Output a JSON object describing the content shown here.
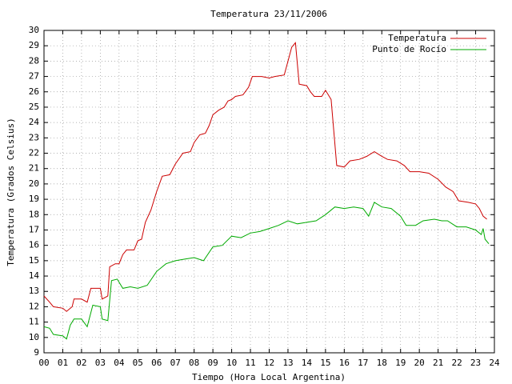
{
  "chart_data": {
    "type": "line",
    "title": "Temperatura 23/11/2006",
    "x_label": "Tiempo (Hora Local Argentina)",
    "y_label": "Temperatura (Grados Celsius)",
    "xlim": [
      0,
      24
    ],
    "ylim": [
      9,
      30
    ],
    "xticks": [
      {
        "value": 0,
        "label": "00"
      },
      {
        "value": 1,
        "label": "01"
      },
      {
        "value": 2,
        "label": "02"
      },
      {
        "value": 3,
        "label": "03"
      },
      {
        "value": 4,
        "label": "04"
      },
      {
        "value": 5,
        "label": "05"
      },
      {
        "value": 6,
        "label": "06"
      },
      {
        "value": 7,
        "label": "07"
      },
      {
        "value": 8,
        "label": "08"
      },
      {
        "value": 9,
        "label": "09"
      },
      10,
      11,
      12,
      13,
      14,
      15,
      16,
      17,
      18,
      19,
      20,
      21,
      22,
      23,
      24
    ],
    "yticks": [
      9,
      10,
      11,
      12,
      13,
      14,
      15,
      16,
      17,
      18,
      19,
      20,
      21,
      22,
      23,
      24,
      25,
      26,
      27,
      28,
      29,
      30
    ],
    "grid": true,
    "legend": "top-right",
    "series": [
      {
        "name": "Temperatura",
        "color": "#cc0000",
        "x": [
          0.0,
          0.3,
          0.5,
          1.0,
          1.2,
          1.5,
          1.6,
          2.0,
          2.3,
          2.5,
          3.0,
          3.1,
          3.4,
          3.5,
          3.8,
          4.0,
          4.2,
          4.4,
          4.8,
          5.0,
          5.2,
          5.4,
          5.7,
          6.0,
          6.3,
          6.7,
          7.0,
          7.4,
          7.8,
          8.0,
          8.3,
          8.6,
          8.8,
          9.0,
          9.3,
          9.6,
          9.8,
          10.0,
          10.2,
          10.6,
          10.9,
          11.1,
          11.6,
          12.0,
          12.3,
          12.8,
          13.0,
          13.2,
          13.4,
          13.6,
          14.0,
          14.2,
          14.4,
          14.8,
          15.0,
          15.3,
          15.6,
          16.0,
          16.3,
          16.8,
          17.2,
          17.6,
          18.0,
          18.3,
          18.8,
          19.2,
          19.5,
          20.0,
          20.5,
          21.0,
          21.4,
          21.8,
          22.1,
          22.6,
          23.0,
          23.2,
          23.4,
          23.6
        ],
        "values": [
          12.7,
          12.3,
          12.0,
          11.9,
          11.7,
          12.0,
          12.5,
          12.5,
          12.3,
          13.2,
          13.2,
          12.5,
          12.7,
          14.6,
          14.8,
          14.8,
          15.4,
          15.7,
          15.7,
          16.3,
          16.4,
          17.5,
          18.3,
          19.5,
          20.5,
          20.6,
          21.3,
          22.0,
          22.1,
          22.7,
          23.2,
          23.3,
          23.8,
          24.5,
          24.8,
          25.0,
          25.4,
          25.5,
          25.7,
          25.8,
          26.3,
          27.0,
          27.0,
          26.9,
          27.0,
          27.1,
          28.0,
          28.9,
          29.2,
          26.5,
          26.4,
          26.0,
          25.7,
          25.7,
          26.1,
          25.5,
          21.2,
          21.1,
          21.5,
          21.6,
          21.8,
          22.1,
          21.8,
          21.6,
          21.5,
          21.2,
          20.8,
          20.8,
          20.7,
          20.3,
          19.8,
          19.5,
          18.9,
          18.8,
          18.7,
          18.4,
          17.9,
          17.7
        ]
      },
      {
        "name": "Punto de Rocío",
        "color": "#00aa00",
        "x": [
          0.0,
          0.3,
          0.5,
          1.0,
          1.2,
          1.4,
          1.6,
          2.0,
          2.3,
          2.6,
          3.0,
          3.1,
          3.4,
          3.6,
          3.9,
          4.2,
          4.6,
          5.0,
          5.5,
          6.0,
          6.5,
          7.0,
          7.5,
          8.0,
          8.5,
          9.0,
          9.5,
          10.0,
          10.5,
          11.0,
          11.5,
          12.0,
          12.5,
          13.0,
          13.5,
          14.0,
          14.5,
          15.0,
          15.5,
          16.0,
          16.5,
          17.0,
          17.3,
          17.6,
          18.0,
          18.5,
          19.0,
          19.3,
          19.8,
          20.2,
          20.8,
          21.2,
          21.5,
          22.0,
          22.5,
          23.0,
          23.3,
          23.4,
          23.5,
          23.7
        ],
        "values": [
          10.7,
          10.6,
          10.2,
          10.1,
          9.9,
          10.8,
          11.2,
          11.2,
          10.7,
          12.1,
          12.0,
          11.2,
          11.1,
          13.7,
          13.8,
          13.2,
          13.3,
          13.2,
          13.4,
          14.3,
          14.8,
          15.0,
          15.1,
          15.2,
          15.0,
          15.9,
          16.0,
          16.6,
          16.5,
          16.8,
          16.9,
          17.1,
          17.3,
          17.6,
          17.4,
          17.5,
          17.6,
          18.0,
          18.5,
          18.4,
          18.5,
          18.4,
          17.9,
          18.8,
          18.5,
          18.4,
          17.9,
          17.3,
          17.3,
          17.6,
          17.7,
          17.6,
          17.6,
          17.2,
          17.2,
          17.0,
          16.7,
          17.1,
          16.4,
          16.1
        ]
      }
    ]
  }
}
